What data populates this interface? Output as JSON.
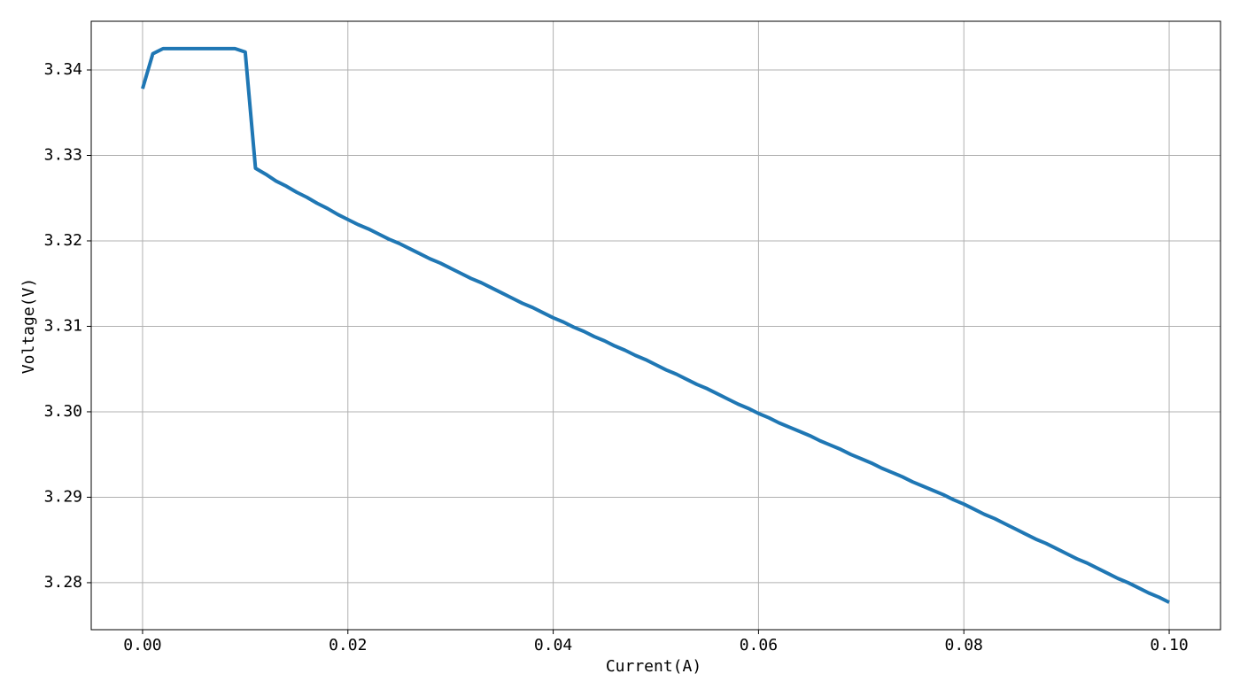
{
  "chart_data": {
    "type": "line",
    "xlabel": "Current(A)",
    "ylabel": "Voltage(V)",
    "x": [
      0,
      0.001,
      0.002,
      0.003,
      0.004,
      0.005,
      0.006,
      0.007,
      0.008,
      0.009,
      0.01,
      0.011,
      0.012,
      0.013,
      0.014,
      0.015,
      0.016,
      0.017,
      0.018,
      0.019,
      0.02,
      0.021,
      0.022,
      0.023,
      0.024,
      0.025,
      0.026,
      0.027,
      0.028,
      0.029,
      0.03,
      0.031,
      0.032,
      0.033,
      0.034,
      0.035,
      0.036,
      0.037,
      0.038,
      0.039,
      0.04,
      0.041,
      0.042,
      0.043,
      0.044,
      0.045,
      0.046,
      0.047,
      0.048,
      0.049,
      0.05,
      0.051,
      0.052,
      0.053,
      0.054,
      0.055,
      0.056,
      0.057,
      0.058,
      0.059,
      0.06,
      0.061,
      0.062,
      0.063,
      0.064,
      0.065,
      0.066,
      0.067,
      0.068,
      0.069,
      0.07,
      0.071,
      0.072,
      0.073,
      0.074,
      0.075,
      0.076,
      0.077,
      0.078,
      0.079,
      0.08,
      0.081,
      0.082,
      0.083,
      0.084,
      0.085,
      0.086,
      0.087,
      0.088,
      0.089,
      0.09,
      0.091,
      0.092,
      0.093,
      0.094,
      0.095,
      0.096,
      0.097,
      0.098,
      0.099,
      0.1
    ],
    "series": [
      {
        "color": "#1f77b4",
        "values": [
          3.3378,
          3.3419,
          3.3425,
          3.3425,
          3.3425,
          3.3425,
          3.3425,
          3.3425,
          3.3425,
          3.3425,
          3.3421,
          3.3285,
          3.3278,
          3.327,
          3.3264,
          3.3257,
          3.3251,
          3.3244,
          3.3238,
          3.3231,
          3.3225,
          3.3219,
          3.3214,
          3.3208,
          3.3202,
          3.3197,
          3.3191,
          3.3185,
          3.3179,
          3.3174,
          3.3168,
          3.3162,
          3.3156,
          3.3151,
          3.3145,
          3.3139,
          3.3133,
          3.3127,
          3.3122,
          3.3116,
          3.311,
          3.3105,
          3.3099,
          3.3094,
          3.3088,
          3.3083,
          3.3077,
          3.3072,
          3.3066,
          3.3061,
          3.3055,
          3.3049,
          3.3044,
          3.3038,
          3.3032,
          3.3027,
          3.3021,
          3.3015,
          3.3009,
          3.3004,
          3.2998,
          3.2993,
          3.2987,
          3.2982,
          3.2977,
          3.2972,
          3.2966,
          3.2961,
          3.2956,
          3.295,
          3.2945,
          3.294,
          3.2934,
          3.2929,
          3.2924,
          3.2918,
          3.2913,
          3.2908,
          3.2903,
          3.2897,
          3.2892,
          3.2886,
          3.288,
          3.2875,
          3.2869,
          3.2863,
          3.2857,
          3.2851,
          3.2846,
          3.284,
          3.2834,
          3.2828,
          3.2823,
          3.2817,
          3.2811,
          3.2805,
          3.28,
          3.2794,
          3.2788,
          3.2783,
          3.2777
        ]
      }
    ],
    "xlim": [
      -0.005,
      0.105
    ],
    "xticks": [
      {
        "value": 0,
        "label": "0.00"
      },
      {
        "value": 0.02,
        "label": "0.02"
      },
      {
        "value": 0.04,
        "label": "0.04"
      },
      {
        "value": 0.06,
        "label": "0.06"
      },
      {
        "value": 0.08,
        "label": "0.08"
      },
      {
        "value": 0.1,
        "label": "0.10"
      }
    ],
    "ylim": [
      3.2745,
      3.3457
    ],
    "yticks": [
      3.28,
      3.29,
      {
        "value": 3.3,
        "label": "3.30"
      },
      3.31,
      3.32,
      3.33,
      3.34
    ],
    "grid": true
  }
}
